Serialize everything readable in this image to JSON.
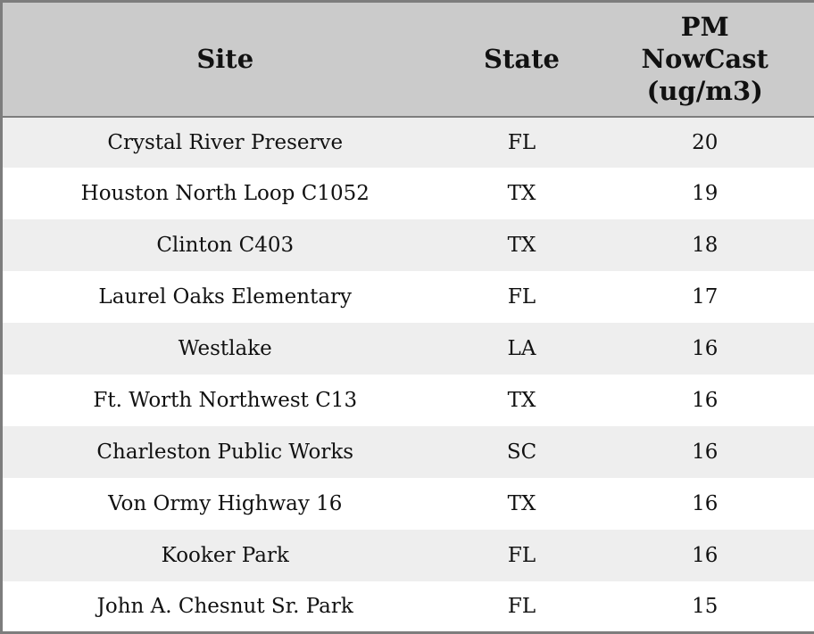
{
  "chart_data": {
    "type": "table",
    "title": "",
    "columns": [
      "Site",
      "State",
      "PM NowCast (ug/m3)"
    ],
    "header_labels": {
      "site": "Site",
      "state": "State",
      "pm": "PM\nNowCast\n(ug/m3)"
    },
    "rows": [
      {
        "site": "Crystal River Preserve",
        "state": "FL",
        "pm": 20
      },
      {
        "site": "Houston North Loop C1052",
        "state": "TX",
        "pm": 19
      },
      {
        "site": "Clinton C403",
        "state": "TX",
        "pm": 18
      },
      {
        "site": "Laurel Oaks Elementary",
        "state": "FL",
        "pm": 17
      },
      {
        "site": "Westlake",
        "state": "LA",
        "pm": 16
      },
      {
        "site": "Ft. Worth Northwest C13",
        "state": "TX",
        "pm": 16
      },
      {
        "site": "Charleston Public Works",
        "state": "SC",
        "pm": 16
      },
      {
        "site": "Von Ormy Highway 16",
        "state": "TX",
        "pm": 16
      },
      {
        "site": "Kooker Park",
        "state": "FL",
        "pm": 16
      },
      {
        "site": "John A. Chesnut Sr. Park",
        "state": "FL",
        "pm": 15
      }
    ]
  },
  "colors": {
    "header_bg": "#cbcbcb",
    "row_alt_bg": "#eeeeee",
    "row_bg": "#ffffff",
    "border": "#7d7d7d",
    "text": "#111111"
  }
}
